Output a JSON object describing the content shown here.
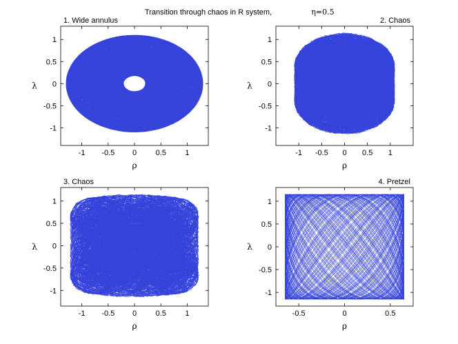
{
  "figure": {
    "title": "Transition through chaos in R system,",
    "eta_label": "η=0.5",
    "line_color": "#1f2fd6"
  },
  "chart_data": [
    {
      "type": "line",
      "title": "1. Wide annulus",
      "xlabel": "ρ",
      "ylabel": "λ",
      "xlim": [
        -1.4,
        1.4
      ],
      "ylim": [
        -1.4,
        1.3
      ],
      "xticks": [
        -1,
        -0.5,
        0,
        0.5,
        1
      ],
      "xtick_labels": [
        "-1",
        "-0.5",
        "0",
        "0.5",
        "1"
      ],
      "yticks": [
        -1,
        -0.5,
        0,
        0.5,
        1
      ],
      "ytick_labels": [
        "-1",
        "-0.5",
        "0",
        "0.5",
        "1"
      ],
      "curve": {
        "amp_x": 1.3,
        "amp_y": 1.1,
        "f1": 1.0,
        "f2": 1.618,
        "f3": 6.0,
        "mix": 0.0,
        "spread": 0.5,
        "t_max": 420
      }
    },
    {
      "type": "line",
      "title": "2. Chaos",
      "xlabel": "ρ",
      "ylabel": "λ",
      "xlim": [
        -1.5,
        1.5
      ],
      "ylim": [
        -1.4,
        1.3
      ],
      "xticks": [
        -1,
        -0.5,
        0,
        0.5,
        1
      ],
      "xtick_labels": [
        "-1",
        "-0.5",
        "0",
        "0.5",
        "1"
      ],
      "yticks": [
        -1,
        -0.5,
        0,
        0.5,
        1
      ],
      "ytick_labels": [
        "-1",
        "-0.5",
        "0",
        "0.5",
        "1"
      ],
      "curve": {
        "amp_x": 1.35,
        "amp_y": 1.15,
        "f1": 1.0,
        "f2": 1.732,
        "f3": 6.0,
        "mix": 0.35,
        "spread": 0.7,
        "t_max": 420
      }
    },
    {
      "type": "line",
      "title": "3. Chaos",
      "xlabel": "ρ",
      "ylabel": "λ",
      "xlim": [
        -1.4,
        1.4
      ],
      "ylim": [
        -1.35,
        1.3
      ],
      "xticks": [
        -1,
        -0.5,
        0,
        0.5,
        1
      ],
      "xtick_labels": [
        "-1",
        "-0.5",
        "0",
        "0.5",
        "1"
      ],
      "yticks": [
        -1,
        -0.5,
        0,
        0.5,
        1
      ],
      "ytick_labels": [
        "-1",
        "-0.5",
        "0",
        "0.5",
        "1"
      ],
      "curve": {
        "amp_x": 1.3,
        "amp_y": 1.15,
        "f1": 1.0,
        "f2": 2.236,
        "f3": 6.0,
        "mix": 0.6,
        "spread": 0.85,
        "t_max": 420
      }
    },
    {
      "type": "line",
      "title": "4. Pretzel",
      "xlabel": "ρ",
      "ylabel": "λ",
      "xlim": [
        -0.75,
        0.75
      ],
      "ylim": [
        -1.3,
        1.3
      ],
      "xticks": [
        -0.5,
        0,
        0.5
      ],
      "xtick_labels": [
        "-0.5",
        "0",
        "0.5"
      ],
      "yticks": [
        -1,
        -0.5,
        0,
        0.5,
        1
      ],
      "ytick_labels": [
        "-1",
        "-0.5",
        "0",
        "0.5",
        "1"
      ],
      "curve": {
        "amp_x": 0.65,
        "amp_y": 1.15,
        "f1": 1.0,
        "f2": 1.414,
        "f3": 0.0,
        "mix": 1.0,
        "spread": 1.0,
        "t_max": 420
      }
    }
  ]
}
